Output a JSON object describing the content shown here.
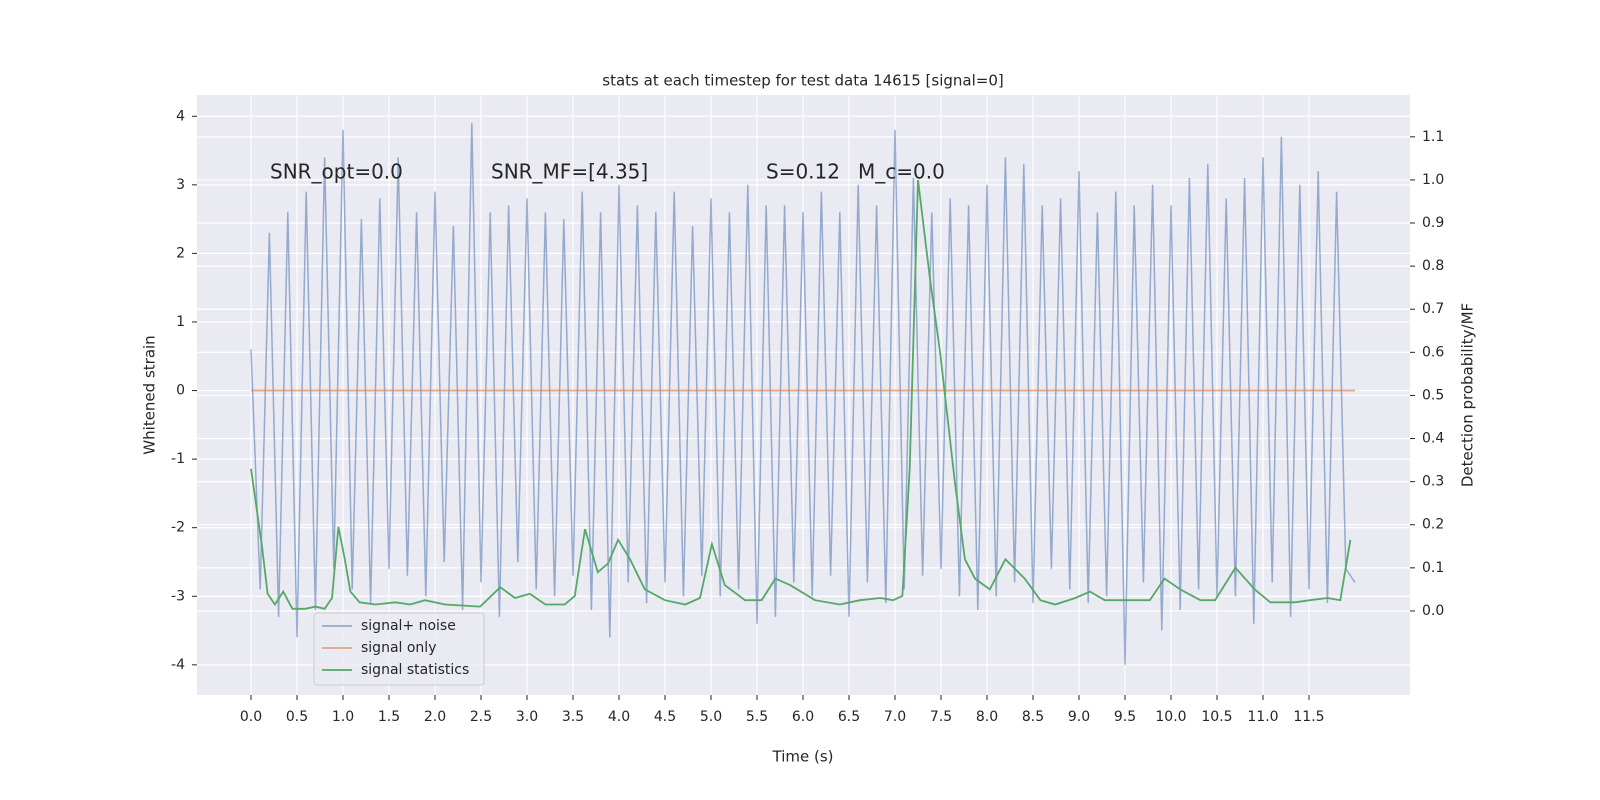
{
  "chart_data": {
    "type": "line",
    "title": "stats at each timestep for test data 14615 [signal=0]",
    "xlabel": "Time (s)",
    "ylabel": "Whitened strain",
    "y2label": "Detection probability/MF",
    "xlim": [
      -0.587,
      12.598
    ],
    "ylim": [
      -4.44,
      4.31
    ],
    "y2lim": [
      -0.195,
      1.197
    ],
    "xticks": [
      {
        "value": 0,
        "label": "0.0"
      },
      0.5,
      {
        "value": 1,
        "label": "1.0"
      },
      1.5,
      {
        "value": 2,
        "label": "2.0"
      },
      2.5,
      {
        "value": 3,
        "label": "3.0"
      },
      3.5,
      {
        "value": 4,
        "label": "4.0"
      },
      4.5,
      {
        "value": 5,
        "label": "5.0"
      },
      5.5,
      {
        "value": 6,
        "label": "6.0"
      },
      6.5,
      {
        "value": 7,
        "label": "7.0"
      },
      7.5,
      {
        "value": 8,
        "label": "8.0"
      },
      8.5,
      {
        "value": 9,
        "label": "9.0"
      },
      9.5,
      {
        "value": 10,
        "label": "10.0"
      },
      10.5,
      {
        "value": 11,
        "label": "11.0"
      },
      11.5
    ],
    "yticks": [
      -4,
      -3,
      -2,
      -1,
      0,
      1,
      2,
      3,
      4
    ],
    "y2ticks": [
      {
        "value": 0,
        "label": "0.0"
      },
      0.1,
      0.2,
      0.3,
      0.4,
      0.5,
      0.6,
      0.7,
      0.8,
      0.9,
      {
        "value": 1,
        "label": "1.0"
      },
      1.1
    ],
    "grid": true,
    "legend_loc": "lower left",
    "annotations": [
      "SNR_opt=0.0",
      "SNR_MF=[4.35]",
      "S=0.12",
      "M_c=0.0"
    ],
    "series": [
      {
        "name": "signal+ noise",
        "color": "#4c72b0",
        "x": [
          0.0,
          0.1,
          0.2,
          0.3,
          0.4,
          0.5,
          0.6,
          0.7,
          0.8,
          0.9,
          1.0,
          1.1,
          1.2,
          1.3,
          1.4,
          1.5,
          1.6,
          1.7,
          1.8,
          1.9,
          2.0,
          2.1,
          2.2,
          2.3,
          2.4,
          2.5,
          2.6,
          2.7,
          2.8,
          2.9,
          3.0,
          3.1,
          3.2,
          3.3,
          3.4,
          3.5,
          3.6,
          3.7,
          3.8,
          3.9,
          4.0,
          4.1,
          4.2,
          4.3,
          4.4,
          4.5,
          4.6,
          4.7,
          4.8,
          4.9,
          5.0,
          5.1,
          5.2,
          5.3,
          5.4,
          5.5,
          5.6,
          5.7,
          5.8,
          5.9,
          6.0,
          6.1,
          6.2,
          6.3,
          6.4,
          6.5,
          6.6,
          6.7,
          6.8,
          6.9,
          7.0,
          7.1,
          7.2,
          7.3,
          7.4,
          7.5,
          7.6,
          7.7,
          7.8,
          7.9,
          8.0,
          8.1,
          8.2,
          8.3,
          8.4,
          8.5,
          8.6,
          8.7,
          8.8,
          8.9,
          9.0,
          9.1,
          9.2,
          9.3,
          9.4,
          9.5,
          9.6,
          9.7,
          9.8,
          9.9,
          10.0,
          10.1,
          10.2,
          10.3,
          10.4,
          10.5,
          10.6,
          10.7,
          10.8,
          10.9,
          11.0,
          11.1,
          11.2,
          11.3,
          11.4,
          11.5,
          11.6,
          11.7,
          11.8,
          11.9,
          12.0
        ],
        "values": [
          0.6,
          -2.9,
          2.3,
          -3.3,
          2.6,
          -3.6,
          2.9,
          -3.2,
          3.4,
          -2.6,
          3.8,
          -2.9,
          2.5,
          -3.1,
          2.8,
          -2.6,
          3.4,
          -2.7,
          2.6,
          -3.0,
          2.9,
          -2.5,
          2.4,
          -3.2,
          3.9,
          -2.8,
          2.6,
          -3.3,
          2.7,
          -2.5,
          2.8,
          -2.9,
          2.6,
          -3.0,
          2.5,
          -2.7,
          2.9,
          -3.2,
          2.6,
          -3.6,
          3.0,
          -2.8,
          2.7,
          -3.1,
          2.6,
          -2.8,
          2.9,
          -3.0,
          2.4,
          -2.7,
          2.8,
          -3.0,
          2.6,
          -2.9,
          3.0,
          -3.4,
          2.7,
          -3.3,
          2.7,
          -2.8,
          2.6,
          -3.0,
          2.9,
          -2.7,
          2.6,
          -3.3,
          3.0,
          -2.8,
          2.7,
          -3.1,
          3.8,
          -2.9,
          3.1,
          -2.7,
          2.6,
          -2.6,
          2.8,
          -3.0,
          2.7,
          -3.2,
          3.0,
          -3.0,
          3.4,
          -2.8,
          3.3,
          -3.1,
          2.7,
          -2.6,
          2.8,
          -2.9,
          3.2,
          -3.1,
          2.6,
          -3.0,
          2.9,
          -4.0,
          2.7,
          -2.8,
          3.0,
          -3.5,
          2.7,
          -3.2,
          3.1,
          -2.9,
          3.3,
          -3.0,
          2.8,
          -3.0,
          3.1,
          -3.4,
          3.4,
          -2.8,
          3.7,
          -3.3,
          3.0,
          -2.9,
          3.2,
          -3.1,
          2.9,
          -2.6,
          -2.8
        ]
      },
      {
        "name": "signal only",
        "color": "#dd8452",
        "x": [
          0.0,
          12.0
        ],
        "values": [
          0,
          0
        ]
      },
      {
        "name": "signal statistics",
        "color": "#55a868",
        "axis": "y2",
        "x": [
          0.0,
          0.12,
          0.18,
          0.26,
          0.35,
          0.45,
          0.59,
          0.7,
          0.8,
          0.88,
          0.95,
          1.02,
          1.08,
          1.18,
          1.35,
          1.57,
          1.73,
          1.89,
          2.11,
          2.49,
          2.71,
          2.87,
          3.03,
          3.2,
          3.41,
          3.52,
          3.63,
          3.77,
          3.88,
          3.99,
          4.12,
          4.28,
          4.5,
          4.72,
          4.88,
          5.01,
          5.15,
          5.37,
          5.55,
          5.7,
          5.86,
          6.13,
          6.4,
          6.62,
          6.84,
          6.98,
          7.08,
          7.16,
          7.25,
          7.38,
          7.49,
          7.65,
          7.76,
          7.87,
          8.03,
          8.2,
          8.41,
          8.58,
          8.74,
          8.96,
          9.12,
          9.28,
          9.55,
          9.77,
          9.93,
          10.1,
          10.32,
          10.48,
          10.7,
          10.91,
          11.08,
          11.35,
          11.51,
          11.7,
          11.84,
          11.95
        ],
        "values": [
          0.33,
          0.15,
          0.04,
          0.015,
          0.045,
          0.005,
          0.005,
          0.01,
          0.005,
          0.03,
          0.195,
          0.12,
          0.045,
          0.02,
          0.015,
          0.02,
          0.015,
          0.025,
          0.015,
          0.01,
          0.055,
          0.03,
          0.04,
          0.015,
          0.015,
          0.035,
          0.19,
          0.09,
          0.11,
          0.165,
          0.12,
          0.05,
          0.025,
          0.015,
          0.03,
          0.155,
          0.06,
          0.025,
          0.025,
          0.075,
          0.06,
          0.025,
          0.015,
          0.025,
          0.03,
          0.025,
          0.035,
          0.33,
          1.0,
          0.77,
          0.6,
          0.3,
          0.12,
          0.075,
          0.05,
          0.12,
          0.075,
          0.025,
          0.015,
          0.03,
          0.045,
          0.025,
          0.025,
          0.025,
          0.075,
          0.05,
          0.025,
          0.025,
          0.1,
          0.05,
          0.02,
          0.02,
          0.025,
          0.03,
          0.025,
          0.165
        ]
      }
    ]
  }
}
